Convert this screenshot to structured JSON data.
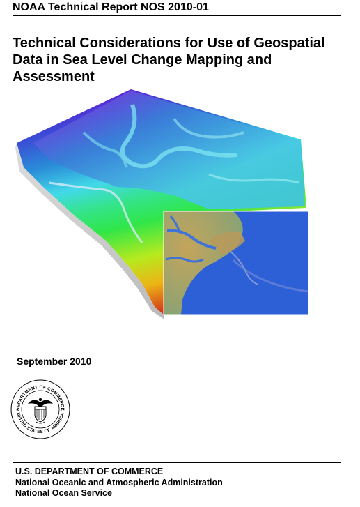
{
  "report": {
    "identifier": "NOAA Technical Report NOS 2010-01"
  },
  "title": {
    "line1": "Technical Considerations for Use of Geospatial",
    "line2": "Data in Sea Level Change Mapping and",
    "line3": "Assessment"
  },
  "date": "September 2010",
  "seal": {
    "top_text": "DEPARTMENT OF COMMERCE",
    "bottom_text": "UNITED STATES OF AMERICA"
  },
  "footer": {
    "line1": "U.S. DEPARTMENT OF COMMERCE",
    "line2": "National Oceanic and Atmospheric Administration",
    "line3": "National Ocean Service"
  },
  "colors": {
    "elevation_high": "#6a14d8",
    "elevation_mid": "#2f7fd0",
    "shallow_water": "#5fe3e6",
    "coast_green": "#2fe25a",
    "offshore_yellow": "#e6e21a",
    "deep_red": "#d0431a",
    "inset_ocean": "#1e5ad2",
    "inset_land": "#c8b060"
  }
}
